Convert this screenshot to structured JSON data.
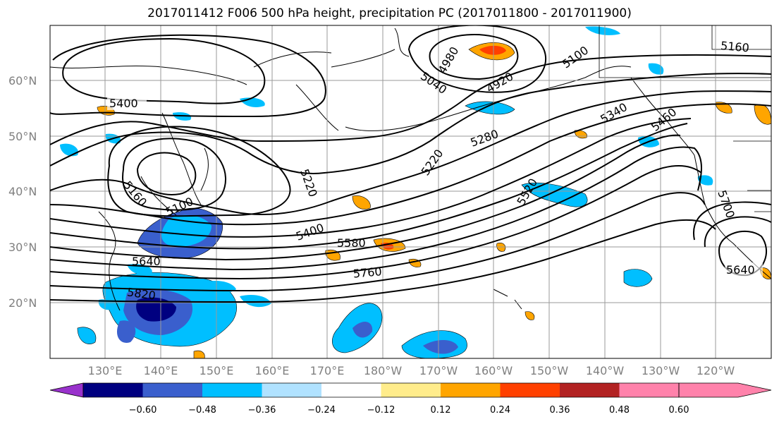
{
  "title": "2017011412 F006 500 hPa height, precipitation PC (2017011800 - 2017011900)",
  "lat_labels": [
    "60°N",
    "50°N",
    "40°N",
    "30°N",
    "20°N"
  ],
  "lon_labels": [
    "130°E",
    "140°E",
    "150°E",
    "160°E",
    "170°E",
    "180°W",
    "170°W",
    "160°W",
    "150°W",
    "140°W",
    "130°W",
    "120°W"
  ],
  "contour_labels": [
    "5400",
    "5160",
    "5100",
    "5220",
    "5400",
    "5580",
    "5640",
    "5760",
    "5820",
    "4980",
    "4920",
    "5040",
    "5100",
    "5160",
    "5280",
    "5220",
    "5340",
    "5460",
    "5520",
    "5700",
    "5640"
  ],
  "colorbar": {
    "ticks": [
      "−0.60",
      "−0.48",
      "−0.36",
      "−0.24",
      "−0.12",
      "0.12",
      "0.24",
      "0.36",
      "0.48",
      "0.60"
    ],
    "colors": [
      "#9932cc",
      "#000080",
      "#3a5fcd",
      "#00bfff",
      "#b0e2ff",
      "#ffffff",
      "#ffec8b",
      "#ffa500",
      "#ff4000",
      "#b22222",
      "#ff82ab"
    ]
  }
}
